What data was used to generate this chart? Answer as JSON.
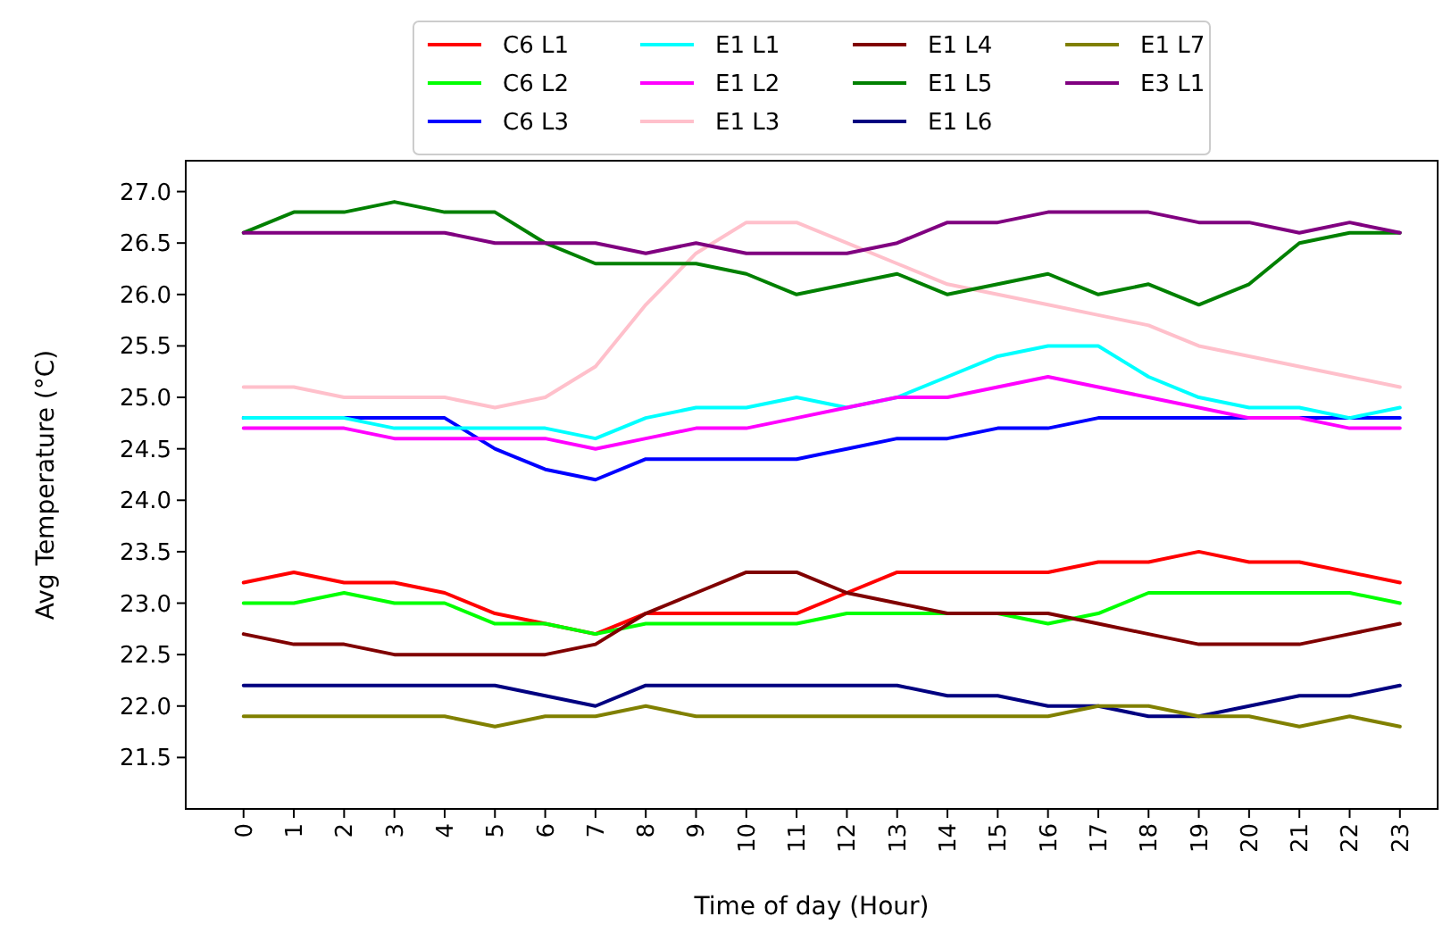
{
  "chart_data": {
    "type": "line",
    "xlabel": "Time of day (Hour)",
    "ylabel": "Avg Temperature (°C)",
    "x": [
      0,
      1,
      2,
      3,
      4,
      5,
      6,
      7,
      8,
      9,
      10,
      11,
      12,
      13,
      14,
      15,
      16,
      17,
      18,
      19,
      20,
      21,
      22,
      23
    ],
    "xlim": [
      -1.15,
      23.75
    ],
    "xticks": [
      0,
      1,
      2,
      3,
      4,
      5,
      6,
      7,
      8,
      9,
      10,
      11,
      12,
      13,
      14,
      15,
      16,
      17,
      18,
      19,
      20,
      21,
      22,
      23
    ],
    "ylim": [
      21.0,
      27.3
    ],
    "yticks": [
      21.5,
      {
        "value": 22,
        "label": "22.0"
      },
      22.5,
      {
        "value": 23,
        "label": "23.0"
      },
      23.5,
      {
        "value": 24,
        "label": "24.0"
      },
      24.5,
      {
        "value": 25,
        "label": "25.0"
      },
      25.5,
      {
        "value": 26,
        "label": "26.0"
      },
      26.5,
      {
        "value": 27,
        "label": "27.0"
      }
    ],
    "legend": "top",
    "series": [
      {
        "name": "C6 L1",
        "color": "#ff0000",
        "values": [
          23.2,
          23.3,
          23.2,
          23.2,
          23.1,
          22.9,
          22.8,
          22.7,
          22.9,
          22.9,
          22.9,
          22.9,
          23.1,
          23.3,
          23.3,
          23.3,
          23.3,
          23.4,
          23.4,
          23.5,
          23.4,
          23.4,
          23.3,
          23.2
        ]
      },
      {
        "name": "C6 L2",
        "color": "#00ff00",
        "values": [
          23.0,
          23.0,
          23.1,
          23.0,
          23.0,
          22.8,
          22.8,
          22.7,
          22.8,
          22.8,
          22.8,
          22.8,
          22.9,
          22.9,
          22.9,
          22.9,
          22.8,
          22.9,
          23.1,
          23.1,
          23.1,
          23.1,
          23.1,
          23.0
        ]
      },
      {
        "name": "C6 L3",
        "color": "#0000ff",
        "values": [
          24.8,
          24.8,
          24.8,
          24.8,
          24.8,
          24.5,
          24.3,
          24.2,
          24.4,
          24.4,
          24.4,
          24.4,
          24.5,
          24.6,
          24.6,
          24.7,
          24.7,
          24.8,
          24.8,
          24.8,
          24.8,
          24.8,
          24.8,
          24.8
        ]
      },
      {
        "name": "E1 L1",
        "color": "#00ffff",
        "values": [
          24.8,
          24.8,
          24.8,
          24.7,
          24.7,
          24.7,
          24.7,
          24.6,
          24.8,
          24.9,
          24.9,
          25.0,
          24.9,
          25.0,
          25.2,
          25.4,
          25.5,
          25.5,
          25.2,
          25.0,
          24.9,
          24.9,
          24.8,
          24.9
        ]
      },
      {
        "name": "E1 L2",
        "color": "#ff00ff",
        "values": [
          24.7,
          24.7,
          24.7,
          24.6,
          24.6,
          24.6,
          24.6,
          24.5,
          24.6,
          24.7,
          24.7,
          24.8,
          24.9,
          25.0,
          25.0,
          25.1,
          25.2,
          25.1,
          25.0,
          24.9,
          24.8,
          24.8,
          24.7,
          24.7
        ]
      },
      {
        "name": "E1 L3",
        "color": "#ffc0cb",
        "values": [
          25.1,
          25.1,
          25.0,
          25.0,
          25.0,
          24.9,
          25.0,
          25.3,
          25.9,
          26.4,
          26.7,
          26.7,
          26.5,
          26.3,
          26.1,
          26.0,
          25.9,
          25.8,
          25.7,
          25.5,
          25.4,
          25.3,
          25.2,
          25.1
        ]
      },
      {
        "name": "E1 L4",
        "color": "#800000",
        "values": [
          22.7,
          22.6,
          22.6,
          22.5,
          22.5,
          22.5,
          22.5,
          22.6,
          22.9,
          23.1,
          23.3,
          23.3,
          23.1,
          23.0,
          22.9,
          22.9,
          22.9,
          22.8,
          22.7,
          22.6,
          22.6,
          22.6,
          22.7,
          22.8
        ]
      },
      {
        "name": "E1 L5",
        "color": "#008000",
        "values": [
          26.6,
          26.8,
          26.8,
          26.9,
          26.8,
          26.8,
          26.5,
          26.3,
          26.3,
          26.3,
          26.2,
          26.0,
          26.1,
          26.2,
          26.0,
          26.1,
          26.2,
          26.0,
          26.1,
          25.9,
          26.1,
          26.5,
          26.6,
          26.6
        ]
      },
      {
        "name": "E1 L6",
        "color": "#000080",
        "values": [
          22.2,
          22.2,
          22.2,
          22.2,
          22.2,
          22.2,
          22.1,
          22.0,
          22.2,
          22.2,
          22.2,
          22.2,
          22.2,
          22.2,
          22.1,
          22.1,
          22.0,
          22.0,
          21.9,
          21.9,
          22.0,
          22.1,
          22.1,
          22.2
        ]
      },
      {
        "name": "E1 L7",
        "color": "#808000",
        "values": [
          21.9,
          21.9,
          21.9,
          21.9,
          21.9,
          21.8,
          21.9,
          21.9,
          22.0,
          21.9,
          21.9,
          21.9,
          21.9,
          21.9,
          21.9,
          21.9,
          21.9,
          22.0,
          22.0,
          21.9,
          21.9,
          21.8,
          21.9,
          21.8
        ]
      },
      {
        "name": "E3 L1",
        "color": "#800080",
        "values": [
          26.6,
          26.6,
          26.6,
          26.6,
          26.6,
          26.5,
          26.5,
          26.5,
          26.4,
          26.5,
          26.4,
          26.4,
          26.4,
          26.5,
          26.7,
          26.7,
          26.8,
          26.8,
          26.8,
          26.7,
          26.7,
          26.6,
          26.7,
          26.6
        ]
      }
    ]
  }
}
